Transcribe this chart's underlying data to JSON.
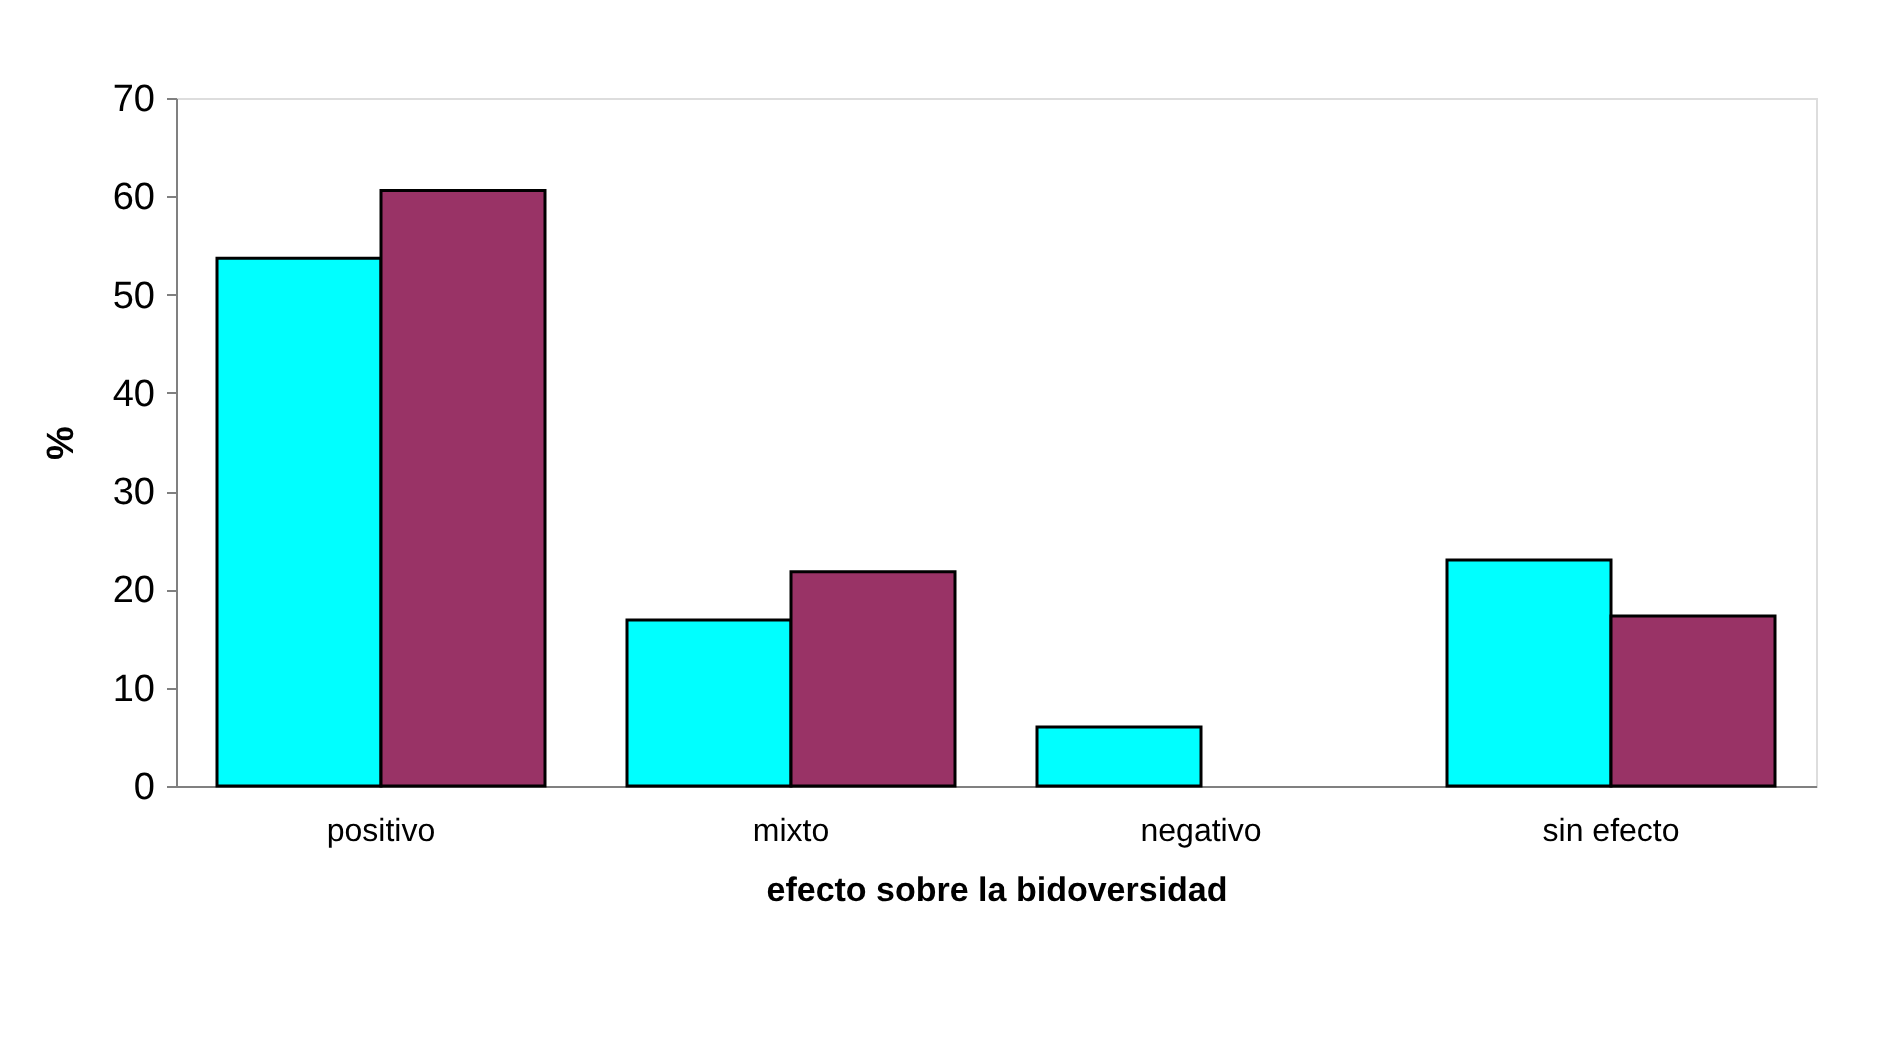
{
  "chart_data": {
    "type": "bar",
    "xlabel": "efecto sobre la bidoversidad",
    "ylabel": "%",
    "categories": [
      "positivo",
      "mixto",
      "negativo",
      "sin efecto"
    ],
    "series": [
      {
        "color": "#00ffff",
        "values": [
          53.7,
          16.9,
          6.0,
          23.0
        ]
      },
      {
        "color": "#993366",
        "values": [
          60.6,
          21.8,
          null,
          17.3
        ]
      }
    ],
    "ylim": [
      0,
      70
    ],
    "yticks": [
      0,
      10,
      20,
      30,
      40,
      50,
      60,
      70
    ],
    "grid": false,
    "legend": false
  }
}
